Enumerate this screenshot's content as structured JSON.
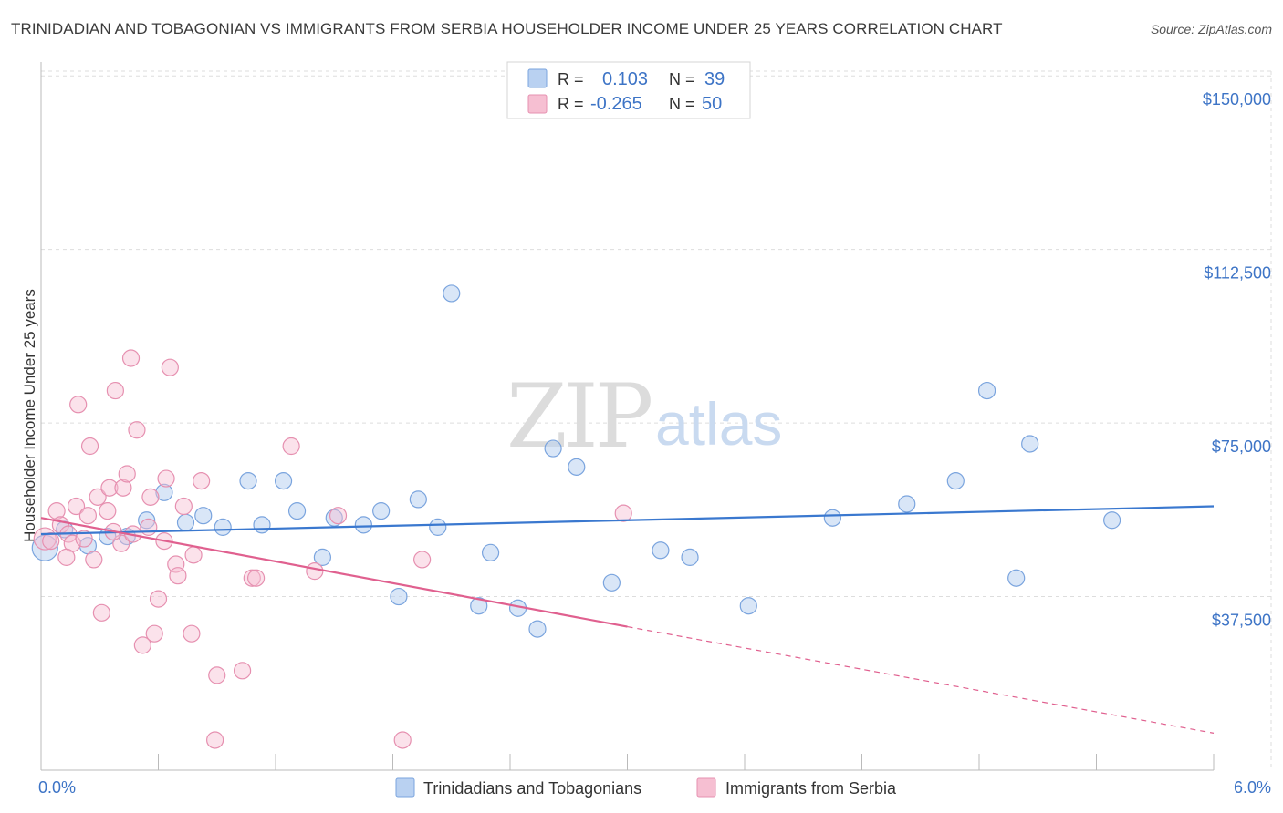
{
  "title": "TRINIDADIAN AND TOBAGONIAN VS IMMIGRANTS FROM SERBIA HOUSEHOLDER INCOME UNDER 25 YEARS CORRELATION CHART",
  "source": "Source: ZipAtlas.com",
  "watermark": {
    "zip": "ZIP",
    "atlas": "atlas"
  },
  "colors": {
    "blue": "#3a78cf",
    "blue_fill": "#b9d1f1",
    "pink": "#e0608f",
    "pink_fill": "#f6bfd2",
    "tick_text": "#3d74c6",
    "grid": "#dddddd"
  },
  "legend_top": {
    "rows": [
      {
        "r_label": "R =",
        "r_value": "0.103",
        "n_label": "N =",
        "n_value": "39"
      },
      {
        "r_label": "R =",
        "r_value": "-0.265",
        "n_label": "N =",
        "n_value": "50"
      }
    ]
  },
  "legend_bottom": [
    "Trinidadians and Tobagonians",
    "Immigrants from Serbia"
  ],
  "chart_data": {
    "type": "scatter",
    "xlabel": "",
    "ylabel": "Householder Income Under 25 years",
    "xlim": [
      0,
      6.0
    ],
    "ylim": [
      0,
      153000
    ],
    "x_tick_labels": [
      "0.0%",
      "6.0%"
    ],
    "y_ticks": [
      37500,
      75000,
      112500,
      150000
    ],
    "y_tick_labels": [
      "$37,500",
      "$75,000",
      "$112,500",
      "$150,000"
    ],
    "grid": true,
    "legend_position": "bottom",
    "series": [
      {
        "name": "Trinidadians and Tobagonians",
        "color": "#3a78cf",
        "trend": {
          "x": [
            0.0,
            6.0
          ],
          "y": [
            51000,
            57000
          ]
        },
        "points": [
          {
            "x": 0.02,
            "y": 48000,
            "s": 14
          },
          {
            "x": 0.12,
            "y": 52000
          },
          {
            "x": 0.24,
            "y": 48500
          },
          {
            "x": 0.34,
            "y": 50500
          },
          {
            "x": 0.44,
            "y": 50500
          },
          {
            "x": 0.54,
            "y": 54000
          },
          {
            "x": 0.63,
            "y": 60000
          },
          {
            "x": 0.74,
            "y": 53500
          },
          {
            "x": 0.83,
            "y": 55000
          },
          {
            "x": 0.93,
            "y": 52500
          },
          {
            "x": 1.06,
            "y": 62500
          },
          {
            "x": 1.13,
            "y": 53000
          },
          {
            "x": 1.24,
            "y": 62500
          },
          {
            "x": 1.31,
            "y": 56000
          },
          {
            "x": 1.44,
            "y": 46000
          },
          {
            "x": 1.5,
            "y": 54500
          },
          {
            "x": 1.65,
            "y": 53000
          },
          {
            "x": 1.74,
            "y": 56000
          },
          {
            "x": 1.83,
            "y": 37500
          },
          {
            "x": 1.93,
            "y": 58500
          },
          {
            "x": 2.03,
            "y": 52500
          },
          {
            "x": 2.1,
            "y": 103000
          },
          {
            "x": 2.24,
            "y": 35500
          },
          {
            "x": 2.3,
            "y": 47000
          },
          {
            "x": 2.44,
            "y": 35000
          },
          {
            "x": 2.54,
            "y": 30500
          },
          {
            "x": 2.62,
            "y": 69500
          },
          {
            "x": 2.74,
            "y": 65500
          },
          {
            "x": 2.92,
            "y": 40500
          },
          {
            "x": 3.17,
            "y": 47500
          },
          {
            "x": 3.32,
            "y": 46000
          },
          {
            "x": 3.62,
            "y": 35500
          },
          {
            "x": 4.05,
            "y": 54500
          },
          {
            "x": 4.43,
            "y": 57500
          },
          {
            "x": 4.68,
            "y": 62500
          },
          {
            "x": 4.84,
            "y": 82000
          },
          {
            "x": 4.99,
            "y": 41500
          },
          {
            "x": 5.06,
            "y": 70500
          },
          {
            "x": 5.48,
            "y": 54000
          }
        ]
      },
      {
        "name": "Immigrants from Serbia",
        "color": "#e0608f",
        "trend": {
          "x": [
            0.0,
            3.0
          ],
          "y": [
            54500,
            31000
          ]
        },
        "trend_extension": {
          "x": [
            3.0,
            6.0
          ],
          "y": [
            31000,
            8000
          ]
        },
        "points": [
          {
            "x": 0.02,
            "y": 50000,
            "s": 12
          },
          {
            "x": 0.05,
            "y": 49500
          },
          {
            "x": 0.08,
            "y": 56000
          },
          {
            "x": 0.1,
            "y": 53000
          },
          {
            "x": 0.14,
            "y": 51000
          },
          {
            "x": 0.16,
            "y": 49000
          },
          {
            "x": 0.18,
            "y": 57000
          },
          {
            "x": 0.19,
            "y": 79000
          },
          {
            "x": 0.22,
            "y": 50000
          },
          {
            "x": 0.24,
            "y": 55000
          },
          {
            "x": 0.25,
            "y": 70000
          },
          {
            "x": 0.27,
            "y": 45500
          },
          {
            "x": 0.29,
            "y": 59000
          },
          {
            "x": 0.31,
            "y": 34000
          },
          {
            "x": 0.34,
            "y": 56000
          },
          {
            "x": 0.35,
            "y": 61000
          },
          {
            "x": 0.38,
            "y": 82000
          },
          {
            "x": 0.41,
            "y": 49000
          },
          {
            "x": 0.42,
            "y": 61000
          },
          {
            "x": 0.44,
            "y": 64000
          },
          {
            "x": 0.46,
            "y": 89000
          },
          {
            "x": 0.49,
            "y": 73500
          },
          {
            "x": 0.52,
            "y": 27000
          },
          {
            "x": 0.55,
            "y": 52500
          },
          {
            "x": 0.56,
            "y": 59000
          },
          {
            "x": 0.58,
            "y": 29500
          },
          {
            "x": 0.6,
            "y": 37000
          },
          {
            "x": 0.63,
            "y": 49500
          },
          {
            "x": 0.64,
            "y": 63000
          },
          {
            "x": 0.66,
            "y": 87000
          },
          {
            "x": 0.69,
            "y": 44500
          },
          {
            "x": 0.7,
            "y": 42000
          },
          {
            "x": 0.73,
            "y": 57000
          },
          {
            "x": 0.77,
            "y": 29500
          },
          {
            "x": 0.78,
            "y": 46500
          },
          {
            "x": 0.82,
            "y": 62500
          },
          {
            "x": 0.9,
            "y": 20500
          },
          {
            "x": 0.89,
            "y": 6500
          },
          {
            "x": 1.03,
            "y": 21500
          },
          {
            "x": 1.08,
            "y": 41500
          },
          {
            "x": 1.1,
            "y": 41500
          },
          {
            "x": 1.28,
            "y": 70000
          },
          {
            "x": 1.4,
            "y": 43000
          },
          {
            "x": 1.52,
            "y": 55000
          },
          {
            "x": 1.85,
            "y": 6500
          },
          {
            "x": 1.95,
            "y": 45500
          },
          {
            "x": 2.98,
            "y": 55500
          },
          {
            "x": 0.37,
            "y": 51500
          },
          {
            "x": 0.47,
            "y": 51000
          },
          {
            "x": 0.13,
            "y": 46000
          }
        ]
      }
    ]
  }
}
